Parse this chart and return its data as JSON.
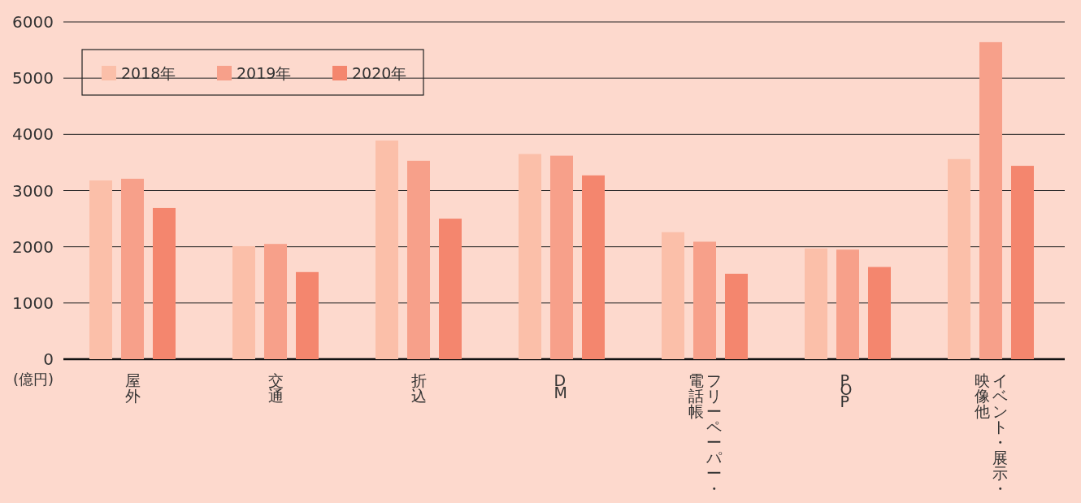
{
  "chart_data": {
    "type": "bar",
    "ylabel": "(億円)",
    "categories": [
      "屋外",
      "交通",
      "折込",
      "DM",
      "フリーペーパー・電話帳",
      "POP",
      "イベント・展示・映像他"
    ],
    "series": [
      {
        "name": "2018年",
        "color": "#fbbfa9",
        "values": [
          3180,
          2010,
          3890,
          3650,
          2260,
          1970,
          3560
        ]
      },
      {
        "name": "2019年",
        "color": "#f7a08a",
        "values": [
          3210,
          2050,
          3530,
          3620,
          2090,
          1950,
          5640
        ]
      },
      {
        "name": "2020年",
        "color": "#f4866e",
        "values": [
          2690,
          1550,
          2500,
          3270,
          1520,
          1640,
          3440
        ]
      }
    ],
    "ylim": [
      0,
      6000
    ],
    "yticks": [
      0,
      1000,
      2000,
      3000,
      4000,
      5000,
      6000
    ],
    "grid": "y",
    "legend": "top left"
  }
}
